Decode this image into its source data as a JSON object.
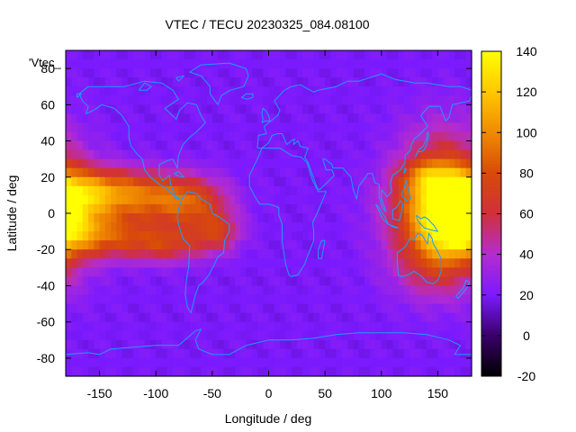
{
  "chart_data": {
    "type": "heatmap",
    "title": "VTEC / TECU 20230325_084.08100",
    "xlabel": "Longitude / deg",
    "ylabel": "Latitude / deg",
    "key_label": "'Vtec_",
    "xlim": [
      -180,
      180
    ],
    "ylim": [
      -90,
      90
    ],
    "x_ticks": [
      -150,
      -100,
      -50,
      0,
      50,
      100,
      150
    ],
    "y_ticks": [
      -80,
      -60,
      -40,
      -20,
      0,
      20,
      40,
      60,
      80
    ],
    "colorbar": {
      "range": [
        -20,
        140
      ],
      "ticks": [
        -20,
        0,
        20,
        40,
        60,
        80,
        100,
        120,
        140
      ],
      "palette": [
        {
          "value": -20,
          "color": "#000000"
        },
        {
          "value": 0,
          "color": "#3a006a"
        },
        {
          "value": 20,
          "color": "#7b1aff"
        },
        {
          "value": 40,
          "color": "#b42ccf"
        },
        {
          "value": 60,
          "color": "#d0303a"
        },
        {
          "value": 80,
          "color": "#d84a0a"
        },
        {
          "value": 100,
          "color": "#f08a00"
        },
        {
          "value": 120,
          "color": "#ffc800"
        },
        {
          "value": 140,
          "color": "#ffff00"
        }
      ]
    },
    "grid": false,
    "overlay": "coastlines",
    "coastline_color": "#1a9fff",
    "background_vtec": 20,
    "vtec_regions": [
      {
        "lon": -185,
        "lat": 3,
        "slon": 38,
        "slat": 13,
        "amp": 68
      },
      {
        "lon": -150,
        "lat": 13,
        "slon": 35,
        "slat": 8,
        "amp": 45
      },
      {
        "lon": -155,
        "lat": -13,
        "slon": 35,
        "slat": 8,
        "amp": 45
      },
      {
        "lon": -100,
        "lat": 8,
        "slon": 30,
        "slat": 10,
        "amp": 45
      },
      {
        "lon": -65,
        "lat": 5,
        "slon": 22,
        "slat": 10,
        "amp": 42
      },
      {
        "lon": -90,
        "lat": -17,
        "slon": 28,
        "slat": 7,
        "amp": 45
      },
      {
        "lon": -45,
        "lat": -10,
        "slon": 14,
        "slat": 7,
        "amp": 38
      },
      {
        "lon": 155,
        "lat": 10,
        "slon": 28,
        "slat": 24,
        "amp": 70
      },
      {
        "lon": 140,
        "lat": 20,
        "slon": 16,
        "slat": 6,
        "amp": 30
      },
      {
        "lon": 165,
        "lat": -5,
        "slon": 16,
        "slat": 12,
        "amp": 28
      },
      {
        "lon": 150,
        "lat": -25,
        "slon": 28,
        "slat": 15,
        "amp": 40
      },
      {
        "lon": -180,
        "lat": 0,
        "slon": 6,
        "slat": 6,
        "amp": -20
      }
    ]
  }
}
